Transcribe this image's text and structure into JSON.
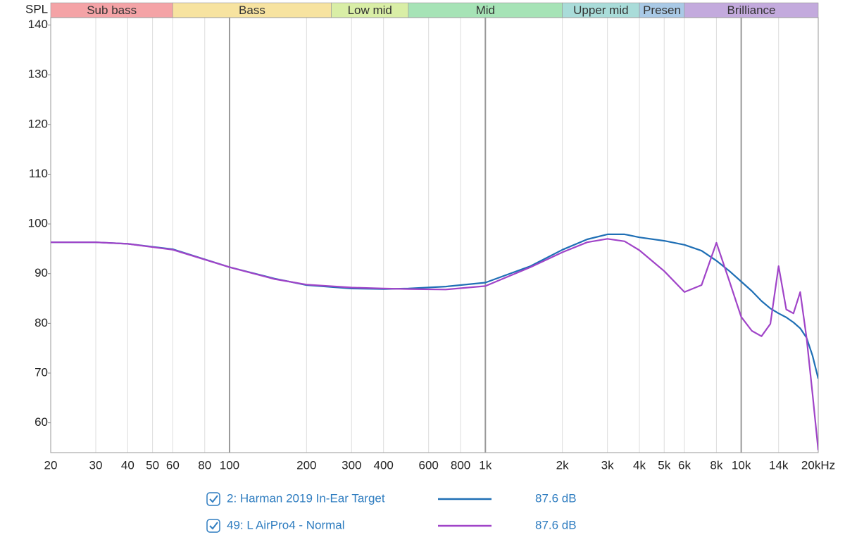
{
  "chart_data": {
    "type": "line",
    "y_axis_label": "SPL",
    "xscale": "log",
    "xlim": [
      20,
      20000
    ],
    "ylim": [
      54,
      141.5
    ],
    "yticks": [
      60,
      70,
      80,
      90,
      100,
      110,
      120,
      130,
      140
    ],
    "xticks": [
      20,
      30,
      40,
      50,
      60,
      80,
      100,
      200,
      300,
      400,
      600,
      800,
      {
        "value": 1000,
        "label": "1k"
      },
      {
        "value": 2000,
        "label": "2k"
      },
      {
        "value": 3000,
        "label": "3k"
      },
      {
        "value": 4000,
        "label": "4k"
      },
      {
        "value": 5000,
        "label": "5k"
      },
      {
        "value": 6000,
        "label": "6k"
      },
      {
        "value": 8000,
        "label": "8k"
      },
      {
        "value": 10000,
        "label": "10k"
      },
      {
        "value": 14000,
        "label": "14k"
      },
      {
        "value": 20000,
        "label": "20kHz"
      }
    ],
    "grid": true,
    "bands": [
      {
        "name": "Sub bass",
        "range": [
          20,
          60
        ],
        "color": "#f4a3a6"
      },
      {
        "name": "Bass",
        "range": [
          60,
          250
        ],
        "color": "#f7e3a0"
      },
      {
        "name": "Low mid",
        "range": [
          250,
          500
        ],
        "color": "#d9eea6"
      },
      {
        "name": "Mid",
        "range": [
          500,
          2000
        ],
        "color": "#a6e3b6"
      },
      {
        "name": "Upper mid",
        "range": [
          2000,
          4000
        ],
        "color": "#a9dcd9"
      },
      {
        "name": "Presen",
        "range": [
          4000,
          6000
        ],
        "color": "#a9c9e6"
      },
      {
        "name": "Brilliance",
        "range": [
          6000,
          20000
        ],
        "color": "#c3aadd"
      }
    ],
    "x": [
      20,
      30,
      40,
      60,
      100,
      150,
      200,
      300,
      400,
      500,
      700,
      1000,
      1500,
      2000,
      2500,
      3000,
      3500,
      4000,
      5000,
      6000,
      7000,
      8000,
      9000,
      10000,
      11000,
      12000,
      13000,
      14000,
      15000,
      16000,
      17000,
      18000,
      19000,
      20000
    ],
    "series": [
      {
        "name": "2: Harman 2019 In-Ear Target",
        "color": "#1f6fb5",
        "legend_value": "87.6 dB",
        "values": [
          96.3,
          96.3,
          96.0,
          94.9,
          91.3,
          89.0,
          87.7,
          87.0,
          86.9,
          87.0,
          87.4,
          88.2,
          91.5,
          94.8,
          96.9,
          97.9,
          97.9,
          97.3,
          96.6,
          95.8,
          94.6,
          92.6,
          90.5,
          88.4,
          86.5,
          84.5,
          83.0,
          82.0,
          81.2,
          80.2,
          79.0,
          77.1,
          73.5,
          68.9
        ]
      },
      {
        "name": "49: L AirPro4 - Normal",
        "color": "#a044c8",
        "legend_value": "87.6 dB",
        "values": [
          96.3,
          96.3,
          96.0,
          94.8,
          91.3,
          88.9,
          87.8,
          87.2,
          87.0,
          86.9,
          86.8,
          87.5,
          91.3,
          94.3,
          96.3,
          97.0,
          96.5,
          94.7,
          90.5,
          86.3,
          87.7,
          96.2,
          88.4,
          81.3,
          78.5,
          77.4,
          79.9,
          91.5,
          82.8,
          82.0,
          86.3,
          77.1,
          65.8,
          54.5
        ]
      }
    ]
  }
}
